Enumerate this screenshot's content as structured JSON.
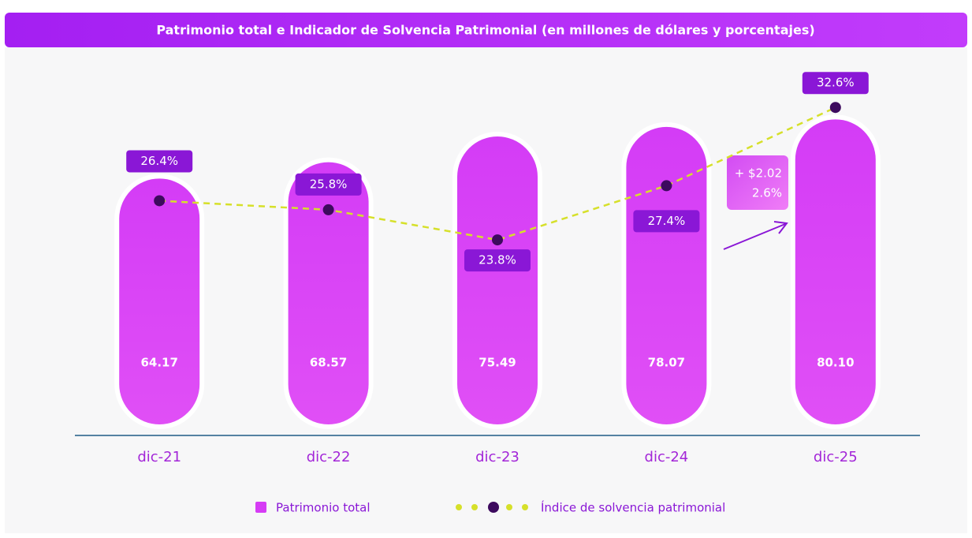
{
  "chart_data": {
    "type": "bar_line",
    "title": "Patrimonio total e Indicador de Solvencia Patrimonial (en millones de dólares y porcentajes)",
    "categories": [
      "dic-21",
      "dic-22",
      "dic-23",
      "dic-24",
      "dic-25"
    ],
    "series": [
      {
        "name": "Patrimonio total",
        "type": "bar",
        "color": "#d63cf5",
        "values": [
          64.17,
          68.57,
          75.49,
          78.07,
          80.1
        ],
        "value_labels": [
          "64.17",
          "68.57",
          "75.49",
          "78.07",
          "80.10"
        ]
      },
      {
        "name": "Índice de solvencia patrimonial",
        "type": "line",
        "axis": "y2",
        "color": "#d6e02a",
        "marker_color": "#3d0a5e",
        "values": [
          26.4,
          25.8,
          23.8,
          27.4,
          32.6
        ],
        "value_labels": [
          "26.4%",
          "25.8%",
          "23.8%",
          "27.4%",
          "32.6%"
        ]
      }
    ],
    "ylim": [
      -5,
      91
    ],
    "y2lim": [
      10.8,
      34.5
    ],
    "annotation": [
      "+ $2.02",
      "2.6%"
    ],
    "legend": "bottom"
  }
}
